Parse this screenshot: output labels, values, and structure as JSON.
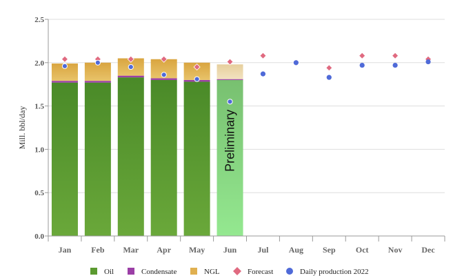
{
  "chart_data": {
    "type": "bar",
    "title": "",
    "xlabel": "",
    "ylabel": "Mill. bbl/day",
    "ylim": [
      0,
      2.5
    ],
    "yticks": [
      0.0,
      0.5,
      1.0,
      1.5,
      2.0,
      2.5
    ],
    "ytick_labels": [
      "0.0",
      "0.5",
      "1.0",
      "1.5",
      "2.0",
      "2.5"
    ],
    "grid": true,
    "legend_position": "bottom",
    "categories": [
      "Jan",
      "Feb",
      "Mar",
      "Apr",
      "May",
      "Jun",
      "Jul",
      "Aug",
      "Sep",
      "Oct",
      "Nov",
      "Dec"
    ],
    "stacked_series": [
      {
        "name": "Oil",
        "color": "#5b9a30",
        "values": [
          1.77,
          1.77,
          1.83,
          1.8,
          1.78,
          1.8,
          null,
          null,
          null,
          null,
          null,
          null
        ]
      },
      {
        "name": "Condensate",
        "color": "#9b3fa6",
        "values": [
          0.02,
          0.02,
          0.02,
          0.02,
          0.02,
          0.01,
          null,
          null,
          null,
          null,
          null,
          null
        ]
      },
      {
        "name": "NGL",
        "color": "#e0b050",
        "values": [
          0.2,
          0.21,
          0.2,
          0.22,
          0.2,
          0.17,
          null,
          null,
          null,
          null,
          null,
          null
        ]
      }
    ],
    "point_series": [
      {
        "name": "Forecast",
        "color": "#e06a80",
        "marker": "diamond",
        "values": [
          2.04,
          2.04,
          2.04,
          2.04,
          1.95,
          2.01,
          2.08,
          2.0,
          1.94,
          2.08,
          2.08,
          2.04
        ]
      },
      {
        "name": "Daily production 2022",
        "color": "#4f6ad8",
        "marker": "circle",
        "values": [
          1.96,
          2.0,
          1.95,
          1.86,
          1.81,
          1.55,
          1.87,
          2.0,
          1.83,
          1.97,
          1.97,
          2.01
        ]
      }
    ],
    "preliminary_index": 5,
    "preliminary_colors": {
      "oil": "#8ee08a",
      "ngl": "#ead7ac"
    },
    "annotations": [
      {
        "text": "Preliminary",
        "category": "Jun"
      }
    ]
  }
}
